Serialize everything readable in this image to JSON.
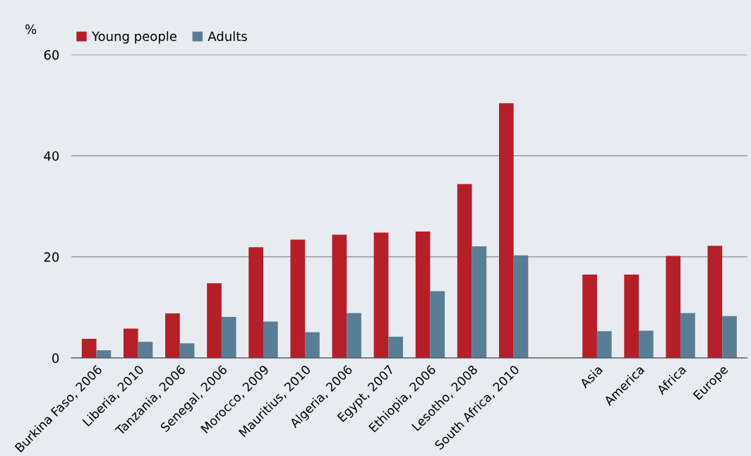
{
  "chart_data": {
    "type": "bar",
    "ylabel": "%",
    "categories": [
      "Burkina Faso, 2006",
      "Liberia, 2010",
      "Tanzania, 2006",
      "Senegal, 2006",
      "Morocco, 2009",
      "Mauritius, 2010",
      "Algeria, 2006",
      "Egypt, 2007",
      "Ethiopia, 2006",
      "Lesotho, 2008",
      "South Africa, 2010",
      null,
      "Asia",
      "America",
      "Africa",
      "Europe"
    ],
    "series": [
      {
        "name": "Young people",
        "color": "#b51f29",
        "values": [
          3.8,
          5.8,
          8.8,
          14.8,
          21.9,
          23.4,
          24.4,
          24.8,
          25.0,
          34.4,
          50.4,
          null,
          16.5,
          16.5,
          20.2,
          22.2
        ]
      },
      {
        "name": "Adults",
        "color": "#587e96",
        "values": [
          1.5,
          3.2,
          2.9,
          8.1,
          7.2,
          5.1,
          8.9,
          4.2,
          13.2,
          22.1,
          20.3,
          null,
          5.3,
          5.4,
          8.9,
          8.3
        ]
      }
    ],
    "ylim": [
      0,
      60
    ],
    "yticks": [
      0,
      20,
      40,
      60
    ],
    "grid": "y",
    "legend": "top left"
  }
}
